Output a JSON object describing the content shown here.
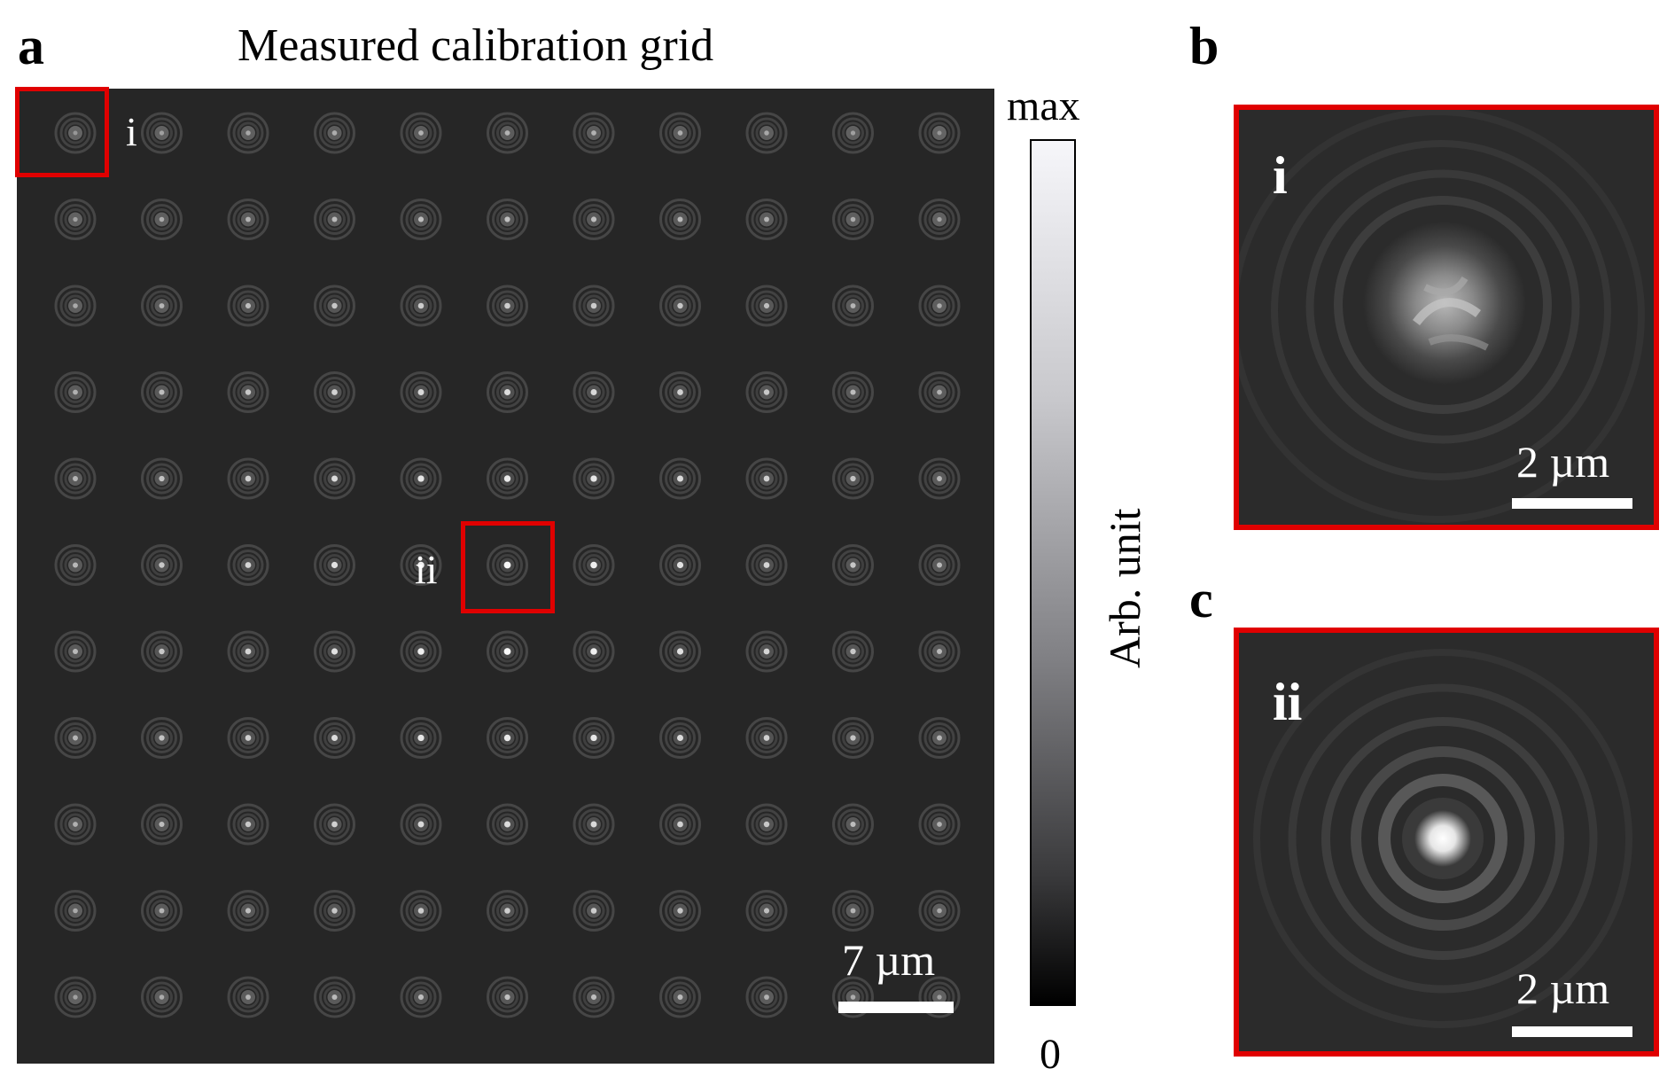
{
  "panel_a": {
    "letter": "a",
    "title": "Measured calibration grid",
    "roi_labels": {
      "i": "i",
      "ii": "ii"
    },
    "scale_bar": "7 µm",
    "spot_grid": {
      "rows": 11,
      "cols": 11
    }
  },
  "colorbar": {
    "max_label": "max",
    "min_label": "0",
    "axis_label": "Arb. unit"
  },
  "panel_b": {
    "letter": "b",
    "zoom_label": "i",
    "scale_bar": "2 µm"
  },
  "panel_c": {
    "letter": "c",
    "zoom_label": "ii",
    "scale_bar": "2 µm"
  },
  "colors": {
    "background_image": "#262626",
    "roi_box": "#e00000"
  }
}
